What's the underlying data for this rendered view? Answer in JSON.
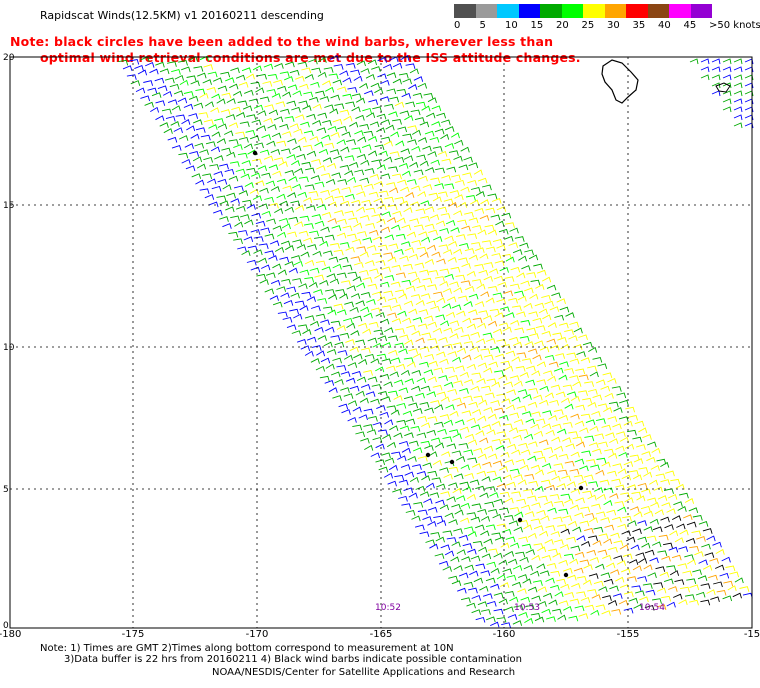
{
  "title": "Rapidscat Winds(12.5KM) v1 20160211 descending",
  "note": {
    "line1": "Note: black circles have been added to the wind barbs, wherever less than",
    "line2": "optimal wind retrieval conditions are met due to the ISS attitude changes."
  },
  "legend": {
    "labels": [
      "0",
      "5",
      "10",
      "15",
      "20",
      "25",
      "30",
      "35",
      "40",
      "45",
      ">50 knots"
    ],
    "colors": [
      "#505050",
      "#9a9a9a",
      "#00c8ff",
      "#0000ff",
      "#00aa00",
      "#00ff00",
      "#ffff00",
      "#ffa500",
      "#ff0000",
      "#8b4513",
      "#ff00ff",
      "#9400d3"
    ]
  },
  "axes": {
    "x_ticks": [
      "-180",
      "-175",
      "-170",
      "-165",
      "-160",
      "-155",
      "-15"
    ],
    "y_ticks": [
      "20",
      "15",
      "10",
      "5",
      "0"
    ]
  },
  "times": [
    "10:52",
    "10:53",
    "10:54"
  ],
  "footer": {
    "line1": "Note: 1) Times are GMT 2)Times along bottom correspond to measurement at 10N",
    "line2": "3)Data buffer is 22 hrs from 20160211 4) Black wind barbs indicate possible contamination",
    "line3": "NOAA/NESDIS/Center for Satellite Applications and Research"
  }
}
